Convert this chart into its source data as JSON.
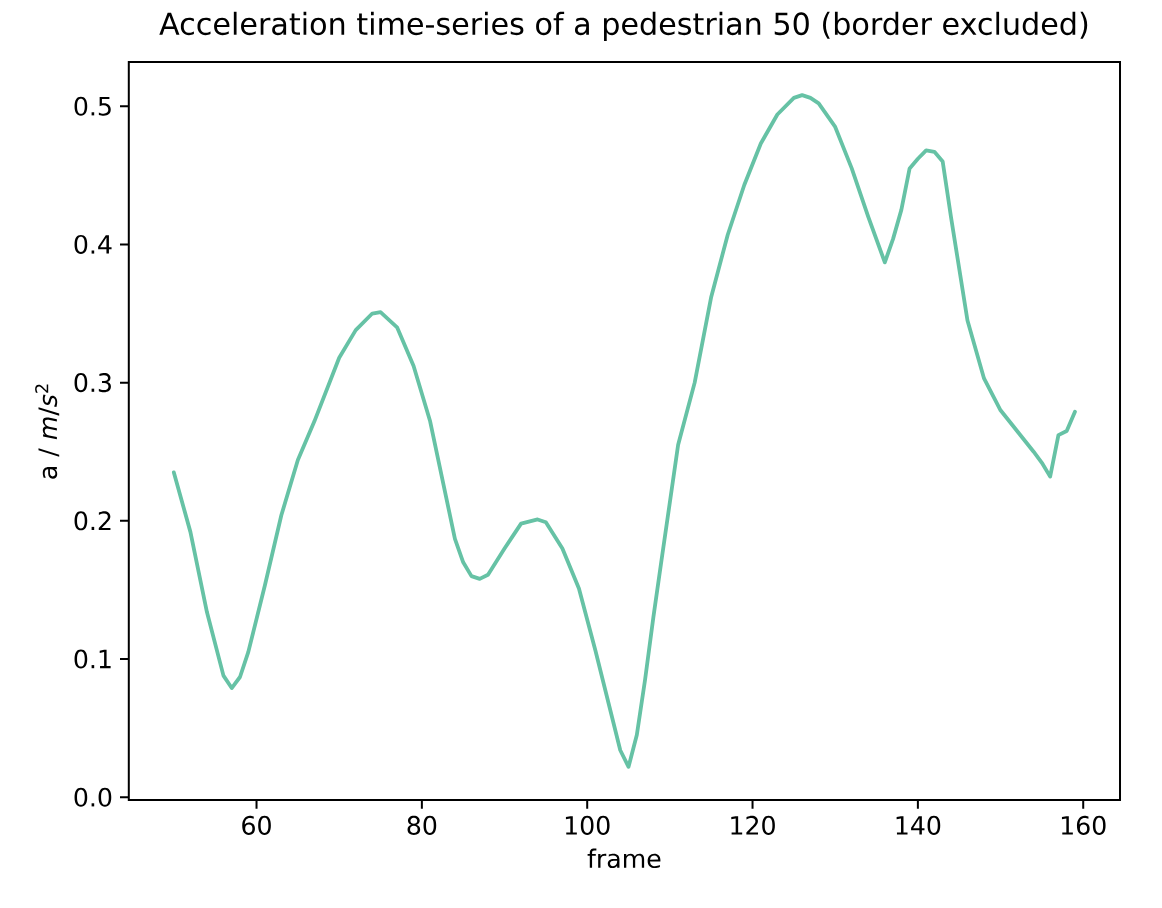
{
  "chart_data": {
    "type": "line",
    "title": "Acceleration time-series of a pedestrian 50 (border excluded)",
    "xlabel": "frame",
    "ylabel": "a / *m*/*s*$^{2}$",
    "color": "#66c2a5",
    "x": [
      50,
      52,
      54,
      56,
      57,
      58,
      59,
      61,
      63,
      65,
      67,
      70,
      72,
      74,
      75,
      77,
      79,
      81,
      84,
      85,
      86,
      87,
      88,
      90,
      92,
      94,
      95,
      97,
      99,
      101,
      103,
      104,
      105,
      106,
      107,
      108,
      109,
      111,
      113,
      115,
      117,
      119,
      121,
      123,
      125,
      126,
      127,
      128,
      130,
      132,
      134,
      136,
      137,
      138,
      139,
      140,
      141,
      142,
      143,
      144,
      146,
      148,
      150,
      152,
      154,
      155,
      156,
      157,
      158,
      159
    ],
    "values": [
      0.235,
      0.192,
      0.134,
      0.088,
      0.079,
      0.087,
      0.105,
      0.153,
      0.204,
      0.244,
      0.272,
      0.318,
      0.338,
      0.35,
      0.351,
      0.34,
      0.312,
      0.272,
      0.187,
      0.17,
      0.16,
      0.158,
      0.161,
      0.18,
      0.198,
      0.201,
      0.199,
      0.18,
      0.151,
      0.106,
      0.058,
      0.034,
      0.022,
      0.045,
      0.085,
      0.13,
      0.172,
      0.255,
      0.3,
      0.362,
      0.407,
      0.443,
      0.473,
      0.494,
      0.506,
      0.508,
      0.506,
      0.502,
      0.485,
      0.455,
      0.42,
      0.387,
      0.404,
      0.425,
      0.455,
      0.462,
      0.468,
      0.467,
      0.46,
      0.42,
      0.345,
      0.303,
      0.28,
      0.265,
      0.25,
      0.242,
      0.232,
      0.262,
      0.265,
      0.279
    ],
    "xlim": [
      44.55,
      164.45
    ],
    "ylim": [
      -0.002,
      0.532
    ],
    "xticks": [
      60,
      80,
      100,
      120,
      140,
      160
    ],
    "yticks": [
      {
        "value": 0,
        "label": "0.0"
      },
      0.1,
      0.2,
      0.3,
      0.4,
      0.5
    ]
  }
}
